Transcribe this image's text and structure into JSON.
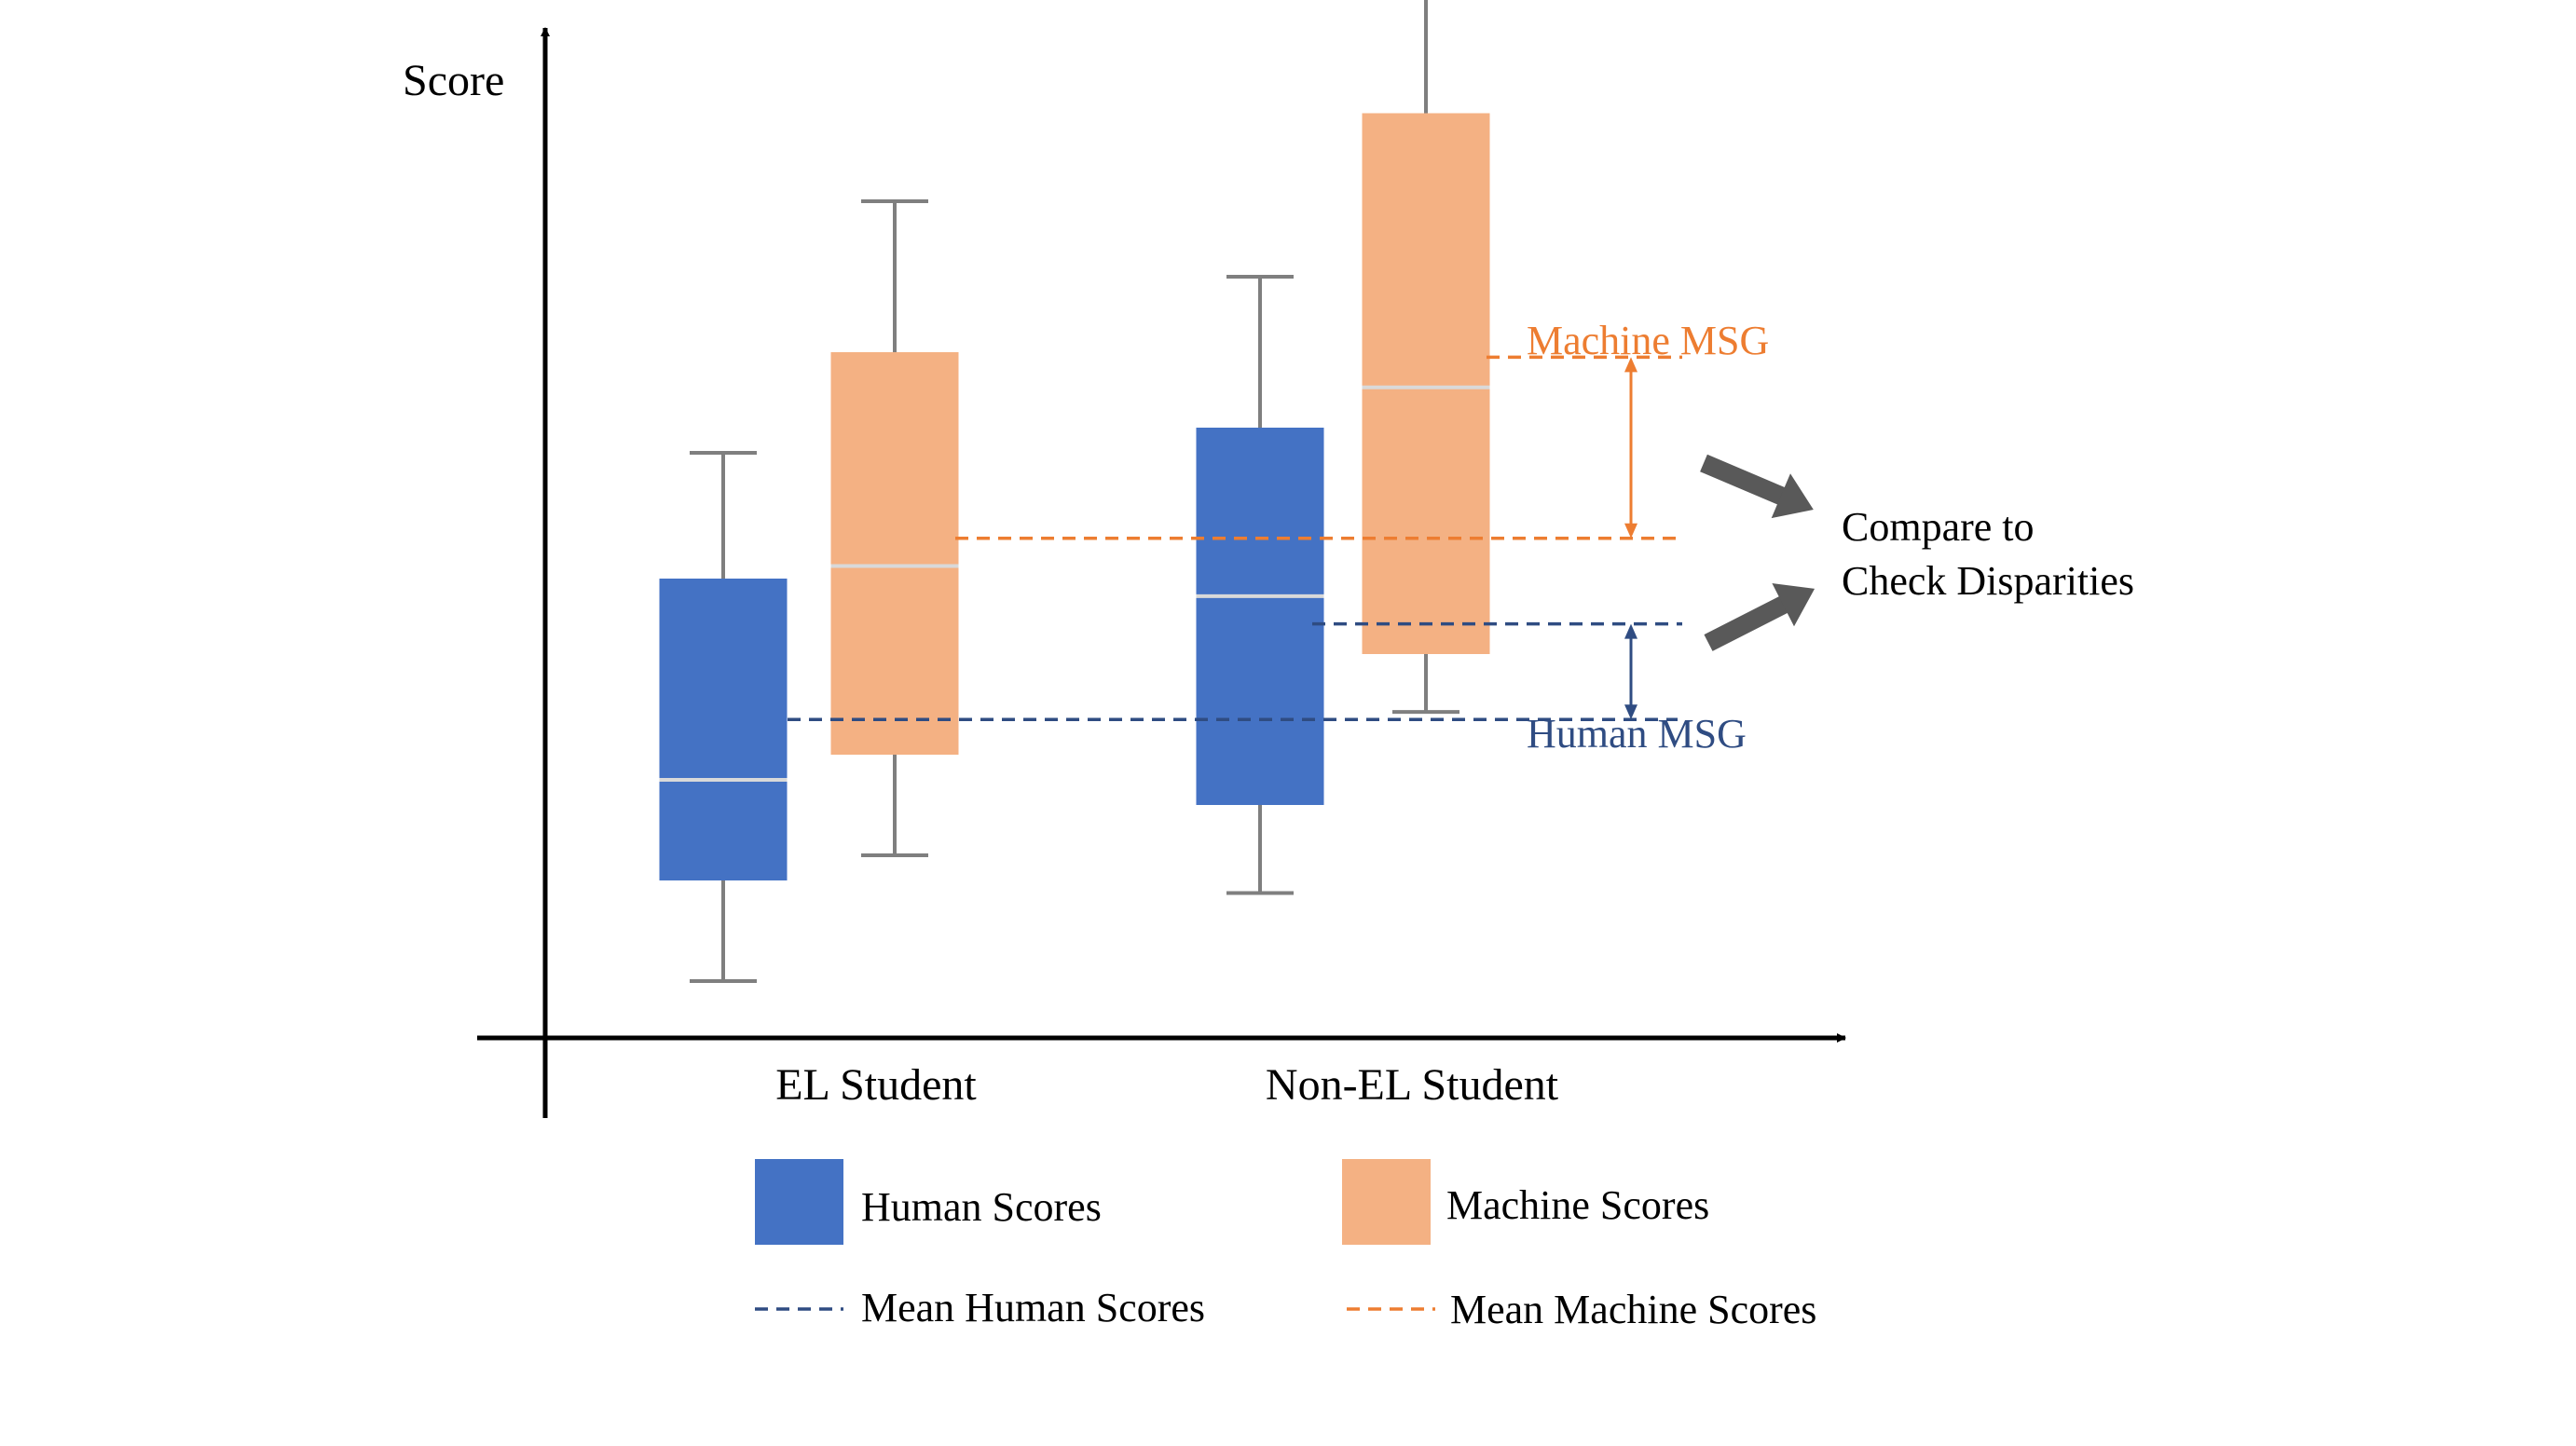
{
  "colors": {
    "human": "#4472C4",
    "machine": "#F4B183",
    "human_dash": "#2F4C82",
    "machine_dash": "#ED7D31",
    "whisker": "#7F7F7F",
    "median": "#D9D9D9",
    "axis": "#000000",
    "arrow": "#595959"
  },
  "axis": {
    "y_label": "Score"
  },
  "groups": [
    {
      "label": "EL Student",
      "human": {
        "min": 1,
        "q1": 5,
        "median": 9,
        "q3": 17,
        "max": 22
      },
      "machine": {
        "min": 6,
        "q1": 10,
        "median": 17.5,
        "q3": 26,
        "max": 32
      }
    },
    {
      "label": "Non-EL Student",
      "human": {
        "min": 4.5,
        "q1": 8,
        "median": 16.3,
        "q3": 23,
        "max": 29
      },
      "machine": {
        "min": 11.7,
        "q1": 14,
        "median": 24.6,
        "q3": 35.5,
        "max": 41
      }
    }
  ],
  "means": {
    "el_human": 11.4,
    "el_machine": 18.6,
    "nonel_human": 15.2,
    "nonel_machine": 25.8
  },
  "annotations": {
    "machine_msg": "Machine MSG",
    "human_msg": "Human MSG",
    "compare_line1": "Compare to",
    "compare_line2": "Check Disparities"
  },
  "legend": {
    "human_scores": "Human Scores",
    "machine_scores": "Machine Scores",
    "mean_human": "Mean Human Scores",
    "mean_machine": "Mean Machine Scores"
  }
}
